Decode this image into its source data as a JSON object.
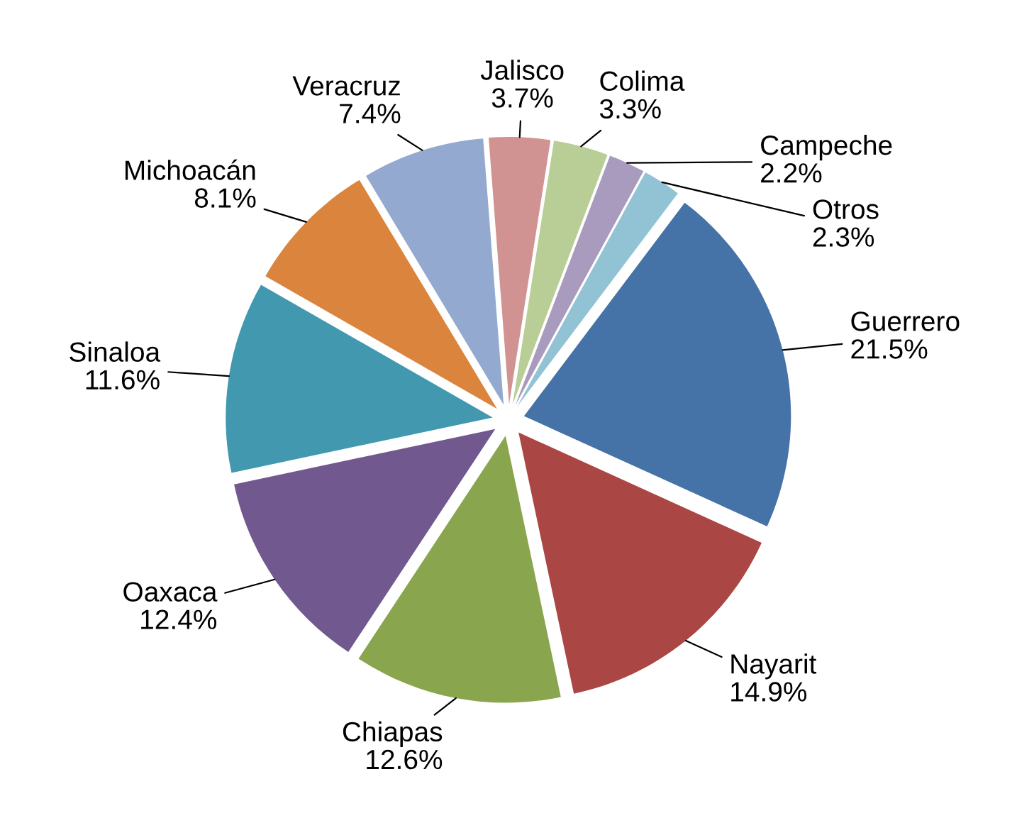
{
  "chart_data": {
    "type": "pie",
    "categories": [
      "Guerrero",
      "Nayarit",
      "Chiapas",
      "Oaxaca",
      "Sinaloa",
      "Michoacán",
      "Veracruz",
      "Jalisco",
      "Colima",
      "Campeche",
      "Otros"
    ],
    "values": [
      21.5,
      14.9,
      12.6,
      12.4,
      11.6,
      8.1,
      7.4,
      3.7,
      3.3,
      2.2,
      2.3
    ],
    "value_labels": [
      "21.5%",
      "14.9%",
      "12.6%",
      "12.4%",
      "11.6%",
      "8.1%",
      "7.4%",
      "3.7%",
      "3.3%",
      "2.2%",
      "2.3%"
    ],
    "colors": [
      "#4572a7",
      "#aa4643",
      "#89a54e",
      "#71588f",
      "#4198af",
      "#db843d",
      "#93a9cf",
      "#d19392",
      "#b9cd96",
      "#a99bbd",
      "#92c3d4"
    ],
    "legend": false
  }
}
